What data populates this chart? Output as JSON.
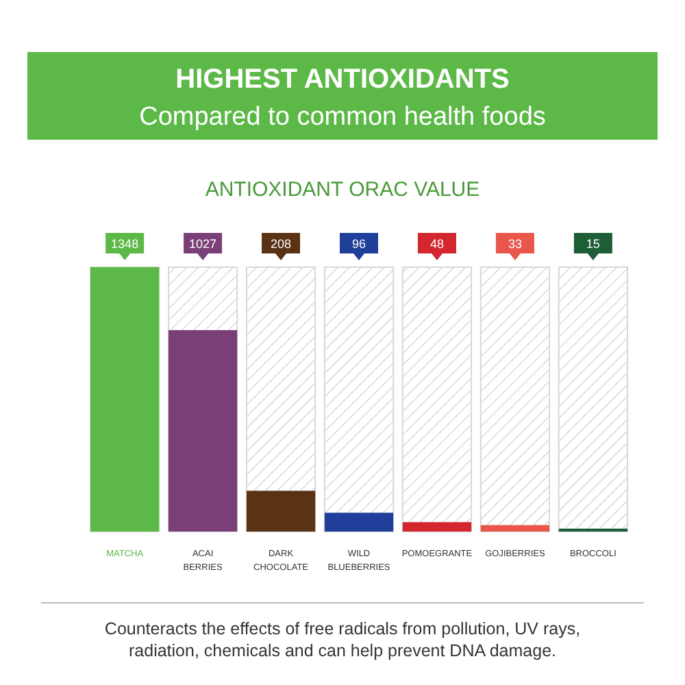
{
  "chart_data": {
    "type": "bar",
    "title": "HIGHEST ANTIOXIDANTS",
    "subtitle": "Compared to common health foods",
    "categories": [
      "MATCHA",
      "ACAI BERRIES",
      "DARK CHOCOLATE",
      "WILD BLUEBERRIES",
      "POMOEGRANTE",
      "GOJIBERRIES",
      "BROCCOLI"
    ],
    "values": [
      1348,
      1027,
      208,
      96,
      48,
      33,
      15
    ],
    "colors": [
      "#5cb947",
      "#7b3f78",
      "#5a3214",
      "#1f3f9a",
      "#d3262f",
      "#e8564c",
      "#1d5e37"
    ],
    "data_labels": true,
    "annotations": [
      "ANTIOXIDANT ORAC VALUE",
      "Counteracts the effects of free radicals from pollution, UV rays, radiation, chemicals and can help prevent DNA damage."
    ]
  }
}
